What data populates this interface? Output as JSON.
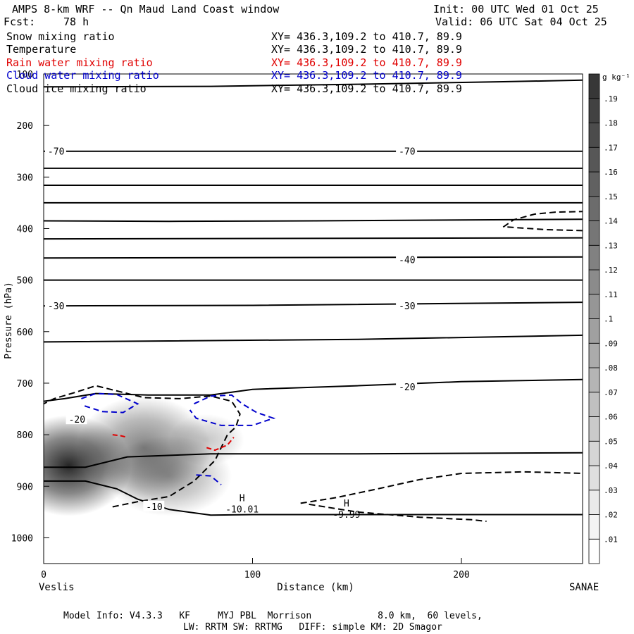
{
  "header": {
    "title": "AMPS 8-km WRF -- Qn Maud Land Coast window",
    "init": "Init: 00 UTC Wed 01 Oct 25",
    "fcst_label": "Fcst:",
    "fcst_value": "78 h",
    "valid": "Valid: 06 UTC Sat 04 Oct 25"
  },
  "fields": [
    {
      "name": "Snow mixing ratio",
      "xy": "XY= 436.3,109.2 to 410.7, 89.9",
      "color": "#000000"
    },
    {
      "name": "Temperature",
      "xy": "XY= 436.3,109.2 to 410.7, 89.9",
      "color": "#000000"
    },
    {
      "name": "Rain water mixing ratio",
      "xy": "XY= 436.3,109.2 to 410.7, 89.9",
      "color": "#e00000"
    },
    {
      "name": "Cloud water mixing ratio",
      "xy": "XY= 436.3,109.2 to 410.7, 89.9",
      "color": "#0000cc"
    },
    {
      "name": "Cloud ice mixing ratio",
      "xy": "XY= 436.3,109.2 to 410.7, 89.9",
      "color": "#000000"
    }
  ],
  "footer": {
    "model_info": "Model Info: V4.3.3   KF     MYJ PBL  Morrison            8.0 km,  60 levels,",
    "model_info2": "LW: RRTM SW: RRTMG   DIFF: simple KM: 2D Smagor"
  },
  "chart_data": {
    "type": "cross-section",
    "title": "AMPS 8-km WRF -- Qn Maud Land Coast window",
    "xlabel": "Distance (km)",
    "ylabel": "Pressure (hPa)",
    "xlim": [
      0,
      258
    ],
    "ylim": [
      1050,
      100
    ],
    "x_ticks": [
      0,
      100,
      200
    ],
    "y_ticks": [
      100,
      200,
      300,
      400,
      500,
      600,
      700,
      800,
      900,
      1000
    ],
    "x_endpoints": {
      "left": "Veslis",
      "right": "SANAE"
    },
    "colorbar": {
      "unit": "g kg⁻¹",
      "labels": [
        ".01",
        ".02",
        ".03",
        ".04",
        ".05",
        ".06",
        ".07",
        ".08",
        ".09",
        ".1",
        ".11",
        ".12",
        ".13",
        ".14",
        ".15",
        ".16",
        ".17",
        ".18",
        ".19"
      ]
    },
    "isotherm_labels": [
      {
        "text": "-70",
        "x": 2,
        "p": 250
      },
      {
        "text": "-70",
        "x": 170,
        "p": 250
      },
      {
        "text": "-40",
        "x": 170,
        "p": 460
      },
      {
        "text": "-30",
        "x": 2,
        "p": 550
      },
      {
        "text": "-30",
        "x": 170,
        "p": 550
      },
      {
        "text": "-20",
        "x": 170,
        "p": 707
      },
      {
        "text": "-20",
        "x": 12,
        "p": 770
      },
      {
        "text": "-10",
        "x": 49,
        "p": 939
      }
    ],
    "isotherms": [
      [
        [
          0,
          125
        ],
        [
          80,
          124
        ],
        [
          150,
          120
        ],
        [
          220,
          115
        ],
        [
          258,
          112
        ]
      ],
      [
        [
          0,
          250
        ],
        [
          258,
          250
        ]
      ],
      [
        [
          0,
          283
        ],
        [
          258,
          283
        ]
      ],
      [
        [
          0,
          316
        ],
        [
          258,
          316
        ]
      ],
      [
        [
          0,
          350
        ],
        [
          258,
          350
        ]
      ],
      [
        [
          0,
          385
        ],
        [
          60,
          386
        ],
        [
          130,
          385
        ],
        [
          258,
          382
        ]
      ],
      [
        [
          0,
          420
        ],
        [
          258,
          418
        ]
      ],
      [
        [
          0,
          457
        ],
        [
          258,
          455
        ]
      ],
      [
        [
          0,
          500
        ],
        [
          258,
          500
        ]
      ],
      [
        [
          0,
          550
        ],
        [
          100,
          549
        ],
        [
          258,
          543
        ]
      ],
      [
        [
          0,
          620
        ],
        [
          150,
          615
        ],
        [
          258,
          607
        ]
      ],
      [
        [
          0,
          735
        ],
        [
          10,
          730
        ],
        [
          25,
          720
        ],
        [
          50,
          723
        ],
        [
          80,
          723
        ],
        [
          100,
          712
        ],
        [
          150,
          705
        ],
        [
          200,
          697
        ],
        [
          258,
          693
        ]
      ],
      [
        [
          0,
          863
        ],
        [
          20,
          863
        ],
        [
          40,
          843
        ],
        [
          80,
          837
        ],
        [
          150,
          837
        ],
        [
          258,
          835
        ]
      ],
      [
        [
          0,
          890
        ],
        [
          20,
          890
        ],
        [
          35,
          905
        ],
        [
          45,
          925
        ],
        [
          60,
          945
        ],
        [
          80,
          956
        ],
        [
          100,
          955
        ],
        [
          150,
          955
        ],
        [
          258,
          955
        ]
      ]
    ],
    "temperature_extrema": [
      {
        "text": "H",
        "value": "-10.01",
        "x": 95,
        "p": 940
      },
      {
        "text": "H",
        "value": "-9.99",
        "x": 145,
        "p": 950
      }
    ],
    "snow_dashed_contours": [
      [
        [
          33,
          940
        ],
        [
          45,
          930
        ],
        [
          60,
          920
        ],
        [
          72,
          890
        ],
        [
          82,
          850
        ],
        [
          88,
          800
        ],
        [
          92,
          785
        ],
        [
          94,
          760
        ],
        [
          90,
          735
        ],
        [
          80,
          725
        ],
        [
          65,
          730
        ],
        [
          48,
          728
        ],
        [
          35,
          715
        ],
        [
          25,
          705
        ],
        [
          15,
          718
        ],
        [
          5,
          730
        ],
        [
          0,
          740
        ]
      ],
      [
        [
          220,
          397
        ],
        [
          225,
          383
        ],
        [
          235,
          372
        ],
        [
          245,
          368
        ],
        [
          258,
          367
        ]
      ],
      [
        [
          222,
          397
        ],
        [
          240,
          402
        ],
        [
          258,
          404
        ]
      ],
      [
        [
          123,
          933
        ],
        [
          140,
          922
        ],
        [
          160,
          905
        ],
        [
          180,
          887
        ],
        [
          200,
          875
        ],
        [
          230,
          872
        ],
        [
          258,
          875
        ]
      ],
      [
        [
          127,
          935
        ],
        [
          150,
          950
        ],
        [
          180,
          960
        ],
        [
          205,
          965
        ],
        [
          212,
          968
        ]
      ]
    ],
    "rain_dashed_contours": [
      [
        [
          33,
          800
        ],
        [
          37,
          802
        ],
        [
          40,
          805
        ]
      ],
      [
        [
          78,
          825
        ],
        [
          82,
          830
        ],
        [
          88,
          820
        ],
        [
          91,
          805
        ]
      ]
    ],
    "cloud_water_dashed_contours": [
      [
        [
          18,
          730
        ],
        [
          25,
          720
        ],
        [
          35,
          722
        ],
        [
          45,
          740
        ],
        [
          38,
          757
        ],
        [
          28,
          755
        ],
        [
          18,
          742
        ]
      ],
      [
        [
          72,
          740
        ],
        [
          80,
          725
        ],
        [
          90,
          723
        ],
        [
          95,
          740
        ],
        [
          102,
          757
        ],
        [
          110,
          768
        ],
        [
          100,
          782
        ],
        [
          85,
          782
        ],
        [
          73,
          768
        ],
        [
          70,
          752
        ]
      ],
      [
        [
          73,
          878
        ],
        [
          80,
          880
        ],
        [
          85,
          897
        ]
      ]
    ],
    "snow_shading": [
      {
        "x": 12,
        "p": 860,
        "rx": 30,
        "ry": 98,
        "max": 0.19
      },
      {
        "x": 48,
        "p": 825,
        "rx": 32,
        "ry": 100,
        "max": 0.11
      },
      {
        "x": 60,
        "p": 880,
        "rx": 30,
        "ry": 78,
        "max": 0.08
      },
      {
        "x": 78,
        "p": 810,
        "rx": 18,
        "ry": 50,
        "max": 0.05
      }
    ]
  }
}
